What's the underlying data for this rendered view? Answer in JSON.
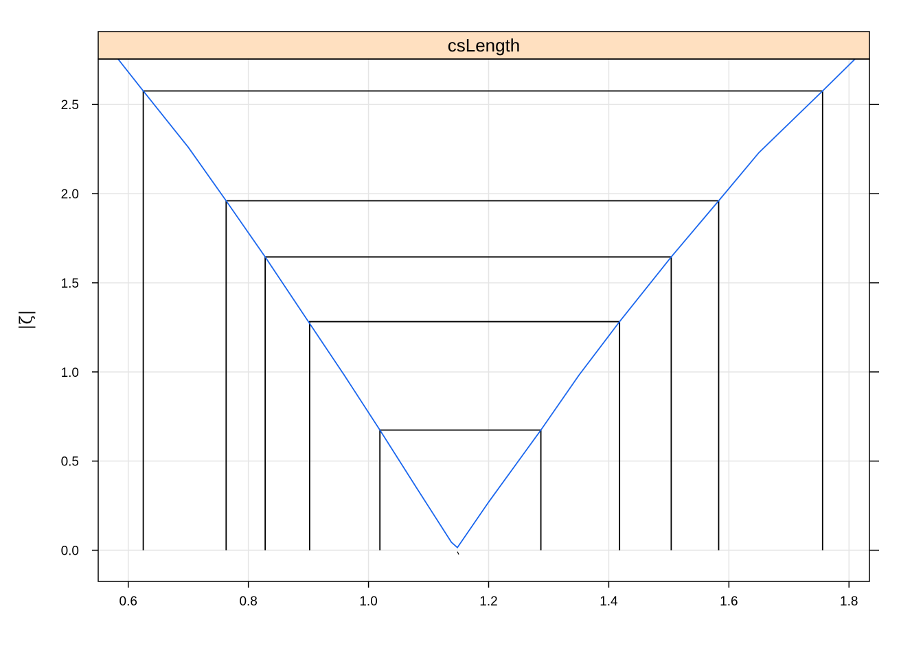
{
  "chart_data": {
    "type": "line",
    "panel_title": "csLength",
    "xlabel": "",
    "ylabel": "|ζ|",
    "xlim": [
      0.55,
      1.834
    ],
    "ylim": [
      -0.175,
      2.755
    ],
    "x_ticks": [
      0.6,
      0.8,
      1.0,
      1.2,
      1.4,
      1.6,
      1.8
    ],
    "x_tick_labels": [
      "0.6",
      "0.8",
      "1.0",
      "1.2",
      "1.4",
      "1.6",
      "1.8"
    ],
    "y_ticks": [
      0.0,
      0.5,
      1.0,
      1.5,
      2.0,
      2.5
    ],
    "y_tick_labels": [
      "0.0",
      "0.5",
      "1.0",
      "1.5",
      "2.0",
      "2.5"
    ],
    "grid": true,
    "series": [
      {
        "color": "#1a66ee",
        "x": [
          0.583,
          0.625,
          0.7,
          0.763,
          0.828,
          0.9,
          0.96,
          1.019,
          1.08,
          1.138,
          1.148,
          1.2,
          1.287,
          1.35,
          1.418,
          1.504,
          1.583,
          1.65,
          1.756,
          1.81
        ],
        "y": [
          2.755,
          2.576,
          2.26,
          1.96,
          1.645,
          1.282,
          0.98,
          0.674,
          0.35,
          0.045,
          0.015,
          0.27,
          0.674,
          0.98,
          1.282,
          1.645,
          1.96,
          2.23,
          2.576,
          2.755
        ]
      }
    ],
    "intervals": [
      {
        "level": 0.674,
        "lower": 1.019,
        "upper": 1.287
      },
      {
        "level": 1.282,
        "lower": 0.902,
        "upper": 1.418
      },
      {
        "level": 1.645,
        "lower": 0.828,
        "upper": 1.504
      },
      {
        "level": 1.96,
        "lower": 0.763,
        "upper": 1.583
      },
      {
        "level": 2.576,
        "lower": 0.625,
        "upper": 1.756
      }
    ],
    "colors": {
      "strip_fill": "#ffe0c0",
      "line": "#1a66ee",
      "interval": "#000000",
      "grid": "#e5e5e5"
    }
  }
}
